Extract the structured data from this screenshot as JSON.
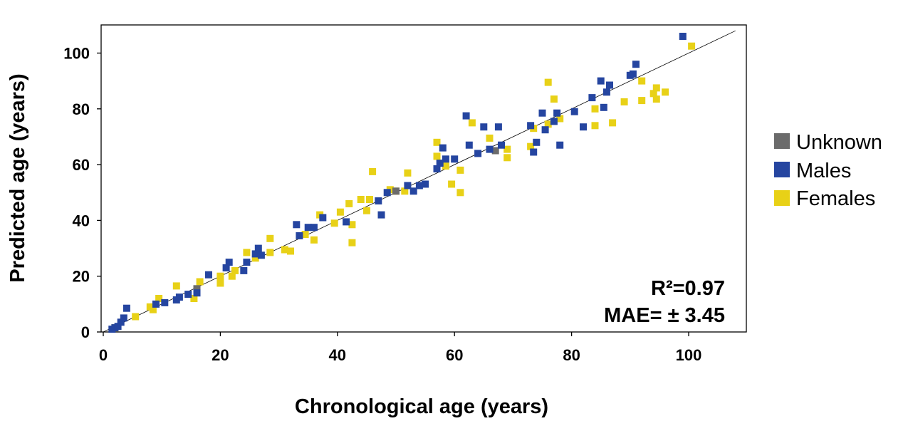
{
  "chart_data": {
    "type": "scatter",
    "title": "",
    "xlabel": "Chronological age (years)",
    "ylabel": "Predicted age (years)",
    "xlim": [
      0,
      110
    ],
    "ylim": [
      0,
      110
    ],
    "xticks": [
      0,
      20,
      40,
      60,
      80,
      100
    ],
    "yticks": [
      0,
      20,
      40,
      60,
      80,
      100
    ],
    "grid": false,
    "legend_position": "right",
    "reference_line": {
      "label": "y = x",
      "from": [
        0,
        0
      ],
      "to": [
        108,
        108
      ],
      "color": "#000000"
    },
    "annotations": [
      "R²=0.97",
      "MAE= ± 3.45"
    ],
    "series": [
      {
        "name": "Unknown",
        "color": "#6b6b6b",
        "points": [
          [
            16,
            15.5
          ],
          [
            50,
            50.5
          ],
          [
            67,
            65
          ]
        ]
      },
      {
        "name": "Males",
        "color": "#2545a0",
        "points": [
          [
            1.5,
            1
          ],
          [
            2,
            1.5
          ],
          [
            2.5,
            2
          ],
          [
            3,
            3.5
          ],
          [
            3.5,
            5
          ],
          [
            4,
            8.5
          ],
          [
            9,
            10
          ],
          [
            10.5,
            10.5
          ],
          [
            12.5,
            11.5
          ],
          [
            13,
            12.5
          ],
          [
            14.5,
            13.5
          ],
          [
            16,
            14
          ],
          [
            18,
            20.5
          ],
          [
            21,
            23
          ],
          [
            21.5,
            25
          ],
          [
            24,
            22
          ],
          [
            24.5,
            25
          ],
          [
            26,
            28
          ],
          [
            26.5,
            30
          ],
          [
            27,
            27.5
          ],
          [
            33,
            38.5
          ],
          [
            33.5,
            34.5
          ],
          [
            35,
            37.5
          ],
          [
            36,
            37.5
          ],
          [
            37.5,
            41
          ],
          [
            41.5,
            39.5
          ],
          [
            47,
            47
          ],
          [
            47.5,
            42
          ],
          [
            48.5,
            50
          ],
          [
            52,
            52.5
          ],
          [
            53,
            50.5
          ],
          [
            54,
            52.5
          ],
          [
            55,
            53
          ],
          [
            57,
            58.5
          ],
          [
            57.5,
            60.5
          ],
          [
            58,
            66
          ],
          [
            58.5,
            62
          ],
          [
            60,
            62
          ],
          [
            62,
            77.5
          ],
          [
            62.5,
            67
          ],
          [
            64,
            64
          ],
          [
            65,
            73.5
          ],
          [
            66,
            65.5
          ],
          [
            67.5,
            73.5
          ],
          [
            68,
            67
          ],
          [
            73,
            74
          ],
          [
            73.5,
            64.5
          ],
          [
            74,
            68
          ],
          [
            75,
            78.5
          ],
          [
            75.5,
            72.5
          ],
          [
            77,
            75.5
          ],
          [
            77.5,
            78.5
          ],
          [
            78,
            67
          ],
          [
            80.5,
            79
          ],
          [
            82,
            73.5
          ],
          [
            83.5,
            84
          ],
          [
            85,
            90
          ],
          [
            85.5,
            80.5
          ],
          [
            86,
            86
          ],
          [
            86.5,
            88.5
          ],
          [
            90,
            92
          ],
          [
            90.5,
            92.5
          ],
          [
            91,
            96
          ],
          [
            99,
            106
          ]
        ]
      },
      {
        "name": "Females",
        "color": "#e8d117",
        "points": [
          [
            2,
            1.5
          ],
          [
            5.5,
            5.5
          ],
          [
            8,
            9
          ],
          [
            8.5,
            8
          ],
          [
            9.5,
            12
          ],
          [
            12.5,
            16.5
          ],
          [
            15.5,
            12
          ],
          [
            16.5,
            18
          ],
          [
            20,
            20
          ],
          [
            20,
            17.5
          ],
          [
            22,
            20
          ],
          [
            22.5,
            22
          ],
          [
            24.5,
            28.5
          ],
          [
            26,
            26.5
          ],
          [
            28.5,
            28.5
          ],
          [
            28.5,
            33.5
          ],
          [
            31,
            29.5
          ],
          [
            32,
            29
          ],
          [
            34.5,
            35
          ],
          [
            36,
            33
          ],
          [
            37,
            42
          ],
          [
            39.5,
            39
          ],
          [
            40.5,
            43
          ],
          [
            42,
            46
          ],
          [
            42.5,
            38.5
          ],
          [
            42.5,
            32
          ],
          [
            44,
            47.5
          ],
          [
            45,
            43.5
          ],
          [
            45.5,
            47.5
          ],
          [
            46,
            57.5
          ],
          [
            49,
            51
          ],
          [
            50,
            50.5
          ],
          [
            51.5,
            50.5
          ],
          [
            52,
            57
          ],
          [
            57,
            68
          ],
          [
            57,
            63
          ],
          [
            58.5,
            59.5
          ],
          [
            59.5,
            53
          ],
          [
            61,
            50
          ],
          [
            61,
            58
          ],
          [
            63,
            75
          ],
          [
            66,
            69.5
          ],
          [
            69,
            65.5
          ],
          [
            69,
            62.5
          ],
          [
            73,
            66.5
          ],
          [
            73.5,
            73
          ],
          [
            76,
            89.5
          ],
          [
            76,
            74.5
          ],
          [
            77,
            83.5
          ],
          [
            78,
            76.5
          ],
          [
            84,
            80
          ],
          [
            84,
            74
          ],
          [
            87,
            75
          ],
          [
            89,
            82.5
          ],
          [
            92,
            90
          ],
          [
            92,
            83
          ],
          [
            94,
            85.5
          ],
          [
            94.5,
            87.5
          ],
          [
            94.5,
            83.5
          ],
          [
            96,
            86
          ],
          [
            100.5,
            102.5
          ]
        ]
      }
    ]
  }
}
